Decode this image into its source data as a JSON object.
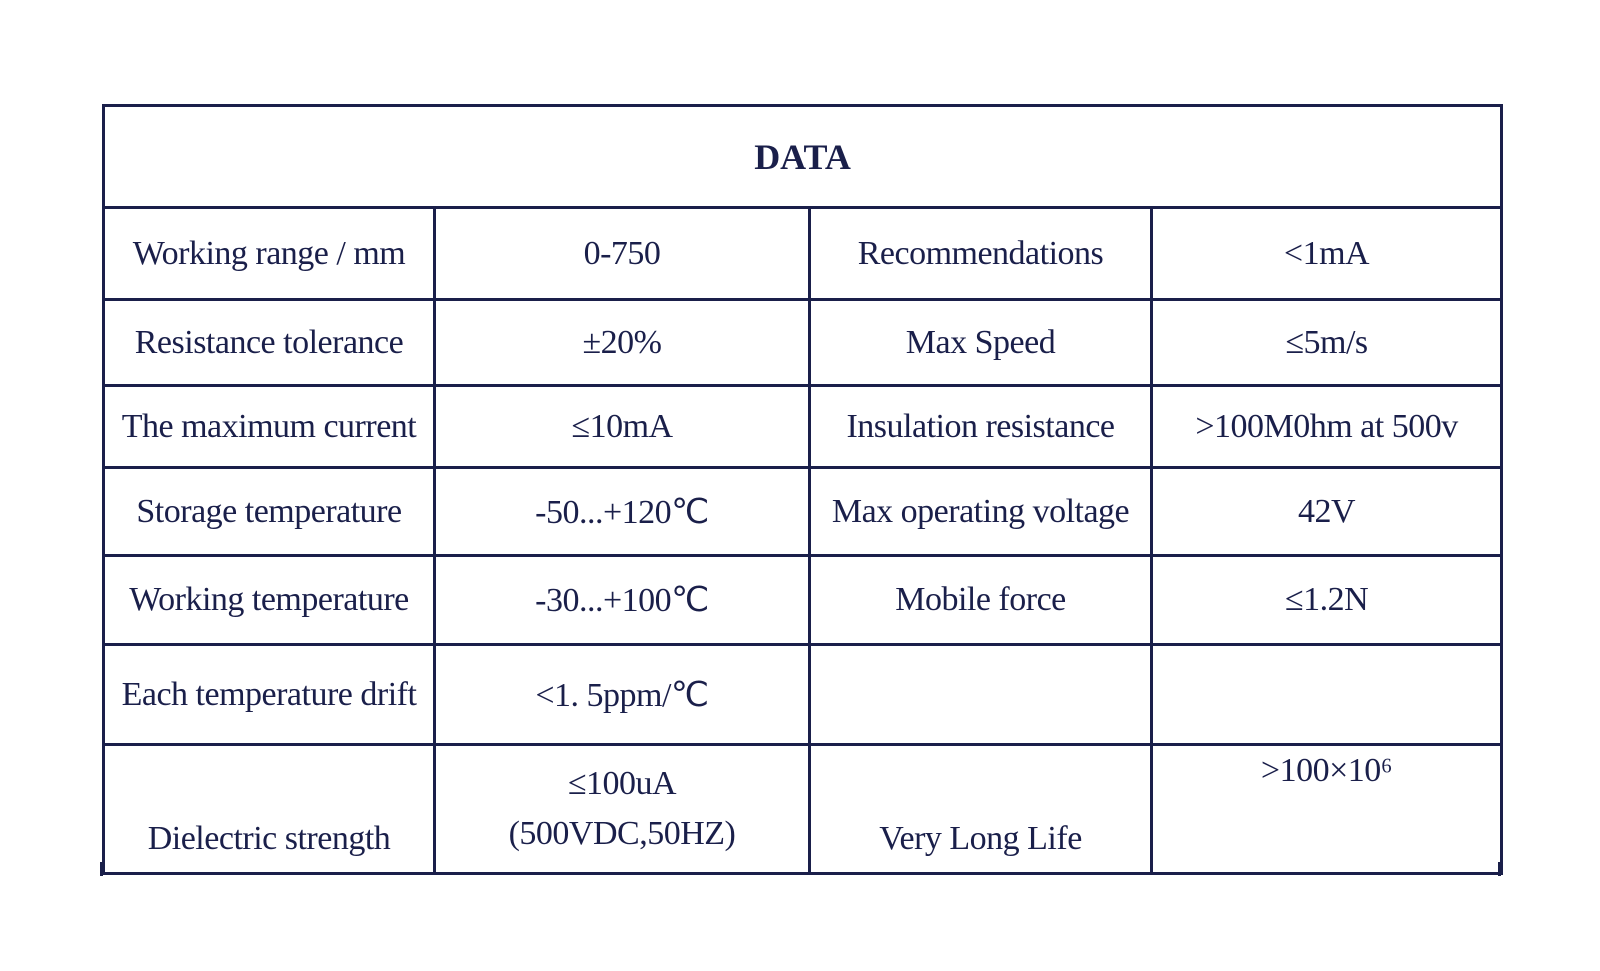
{
  "table": {
    "title": "DATA",
    "rows": [
      [
        "Working range / mm",
        "0-750",
        "Recommendations",
        "<1mA"
      ],
      [
        "Resistance tolerance",
        "±20%",
        "Max Speed",
        "≤5m/s"
      ],
      [
        "The maximum current",
        "≤10mA",
        "Insulation resistance",
        ">100M0hm at 500v"
      ],
      [
        "Storage temperature",
        "-50...+120℃",
        "Max operating voltage",
        "42V"
      ],
      [
        "Working temperature",
        "-30...+100℃",
        "Mobile force",
        "≤1.2N"
      ],
      [
        "Each temperature drift",
        "<1. 5ppm/℃",
        null,
        null
      ],
      [
        "Dielectric strength",
        [
          "≤100uA",
          "(500VDC,50HZ)"
        ],
        "Very Long Life",
        ">100×10⁶"
      ]
    ]
  }
}
